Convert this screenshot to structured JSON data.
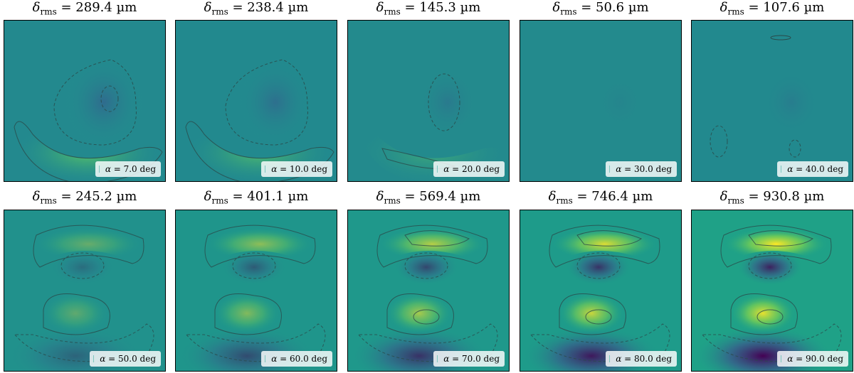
{
  "chart_data": {
    "type": "heatmap",
    "layout": "2x5 grid of contour maps",
    "title_symbol": "δ",
    "title_subscript": "rms",
    "title_unit": "µm",
    "legend_symbol": "α",
    "legend_unit": "deg",
    "colormap": "viridis",
    "panels": [
      {
        "alpha": "7.0",
        "delta_rms": "289.4",
        "bg": "#23898e",
        "intensity": 0.3
      },
      {
        "alpha": "10.0",
        "delta_rms": "238.4",
        "bg": "#22898e",
        "intensity": 0.26
      },
      {
        "alpha": "20.0",
        "delta_rms": "145.3",
        "bg": "#238a8d",
        "intensity": 0.16
      },
      {
        "alpha": "30.0",
        "delta_rms": "50.6",
        "bg": "#238a8d",
        "intensity": 0.05
      },
      {
        "alpha": "40.0",
        "delta_rms": "107.6",
        "bg": "#22898e",
        "intensity": 0.12
      },
      {
        "alpha": "50.0",
        "delta_rms": "245.2",
        "bg": "#21918c",
        "intensity": 0.32
      },
      {
        "alpha": "60.0",
        "delta_rms": "401.1",
        "bg": "#1f958b",
        "intensity": 0.5
      },
      {
        "alpha": "70.0",
        "delta_rms": "569.4",
        "bg": "#1f988b",
        "intensity": 0.68
      },
      {
        "alpha": "80.0",
        "delta_rms": "746.4",
        "bg": "#1e9b8a",
        "intensity": 0.85
      },
      {
        "alpha": "90.0",
        "delta_rms": "930.8",
        "bg": "#1fa187",
        "intensity": 1.0
      }
    ]
  }
}
